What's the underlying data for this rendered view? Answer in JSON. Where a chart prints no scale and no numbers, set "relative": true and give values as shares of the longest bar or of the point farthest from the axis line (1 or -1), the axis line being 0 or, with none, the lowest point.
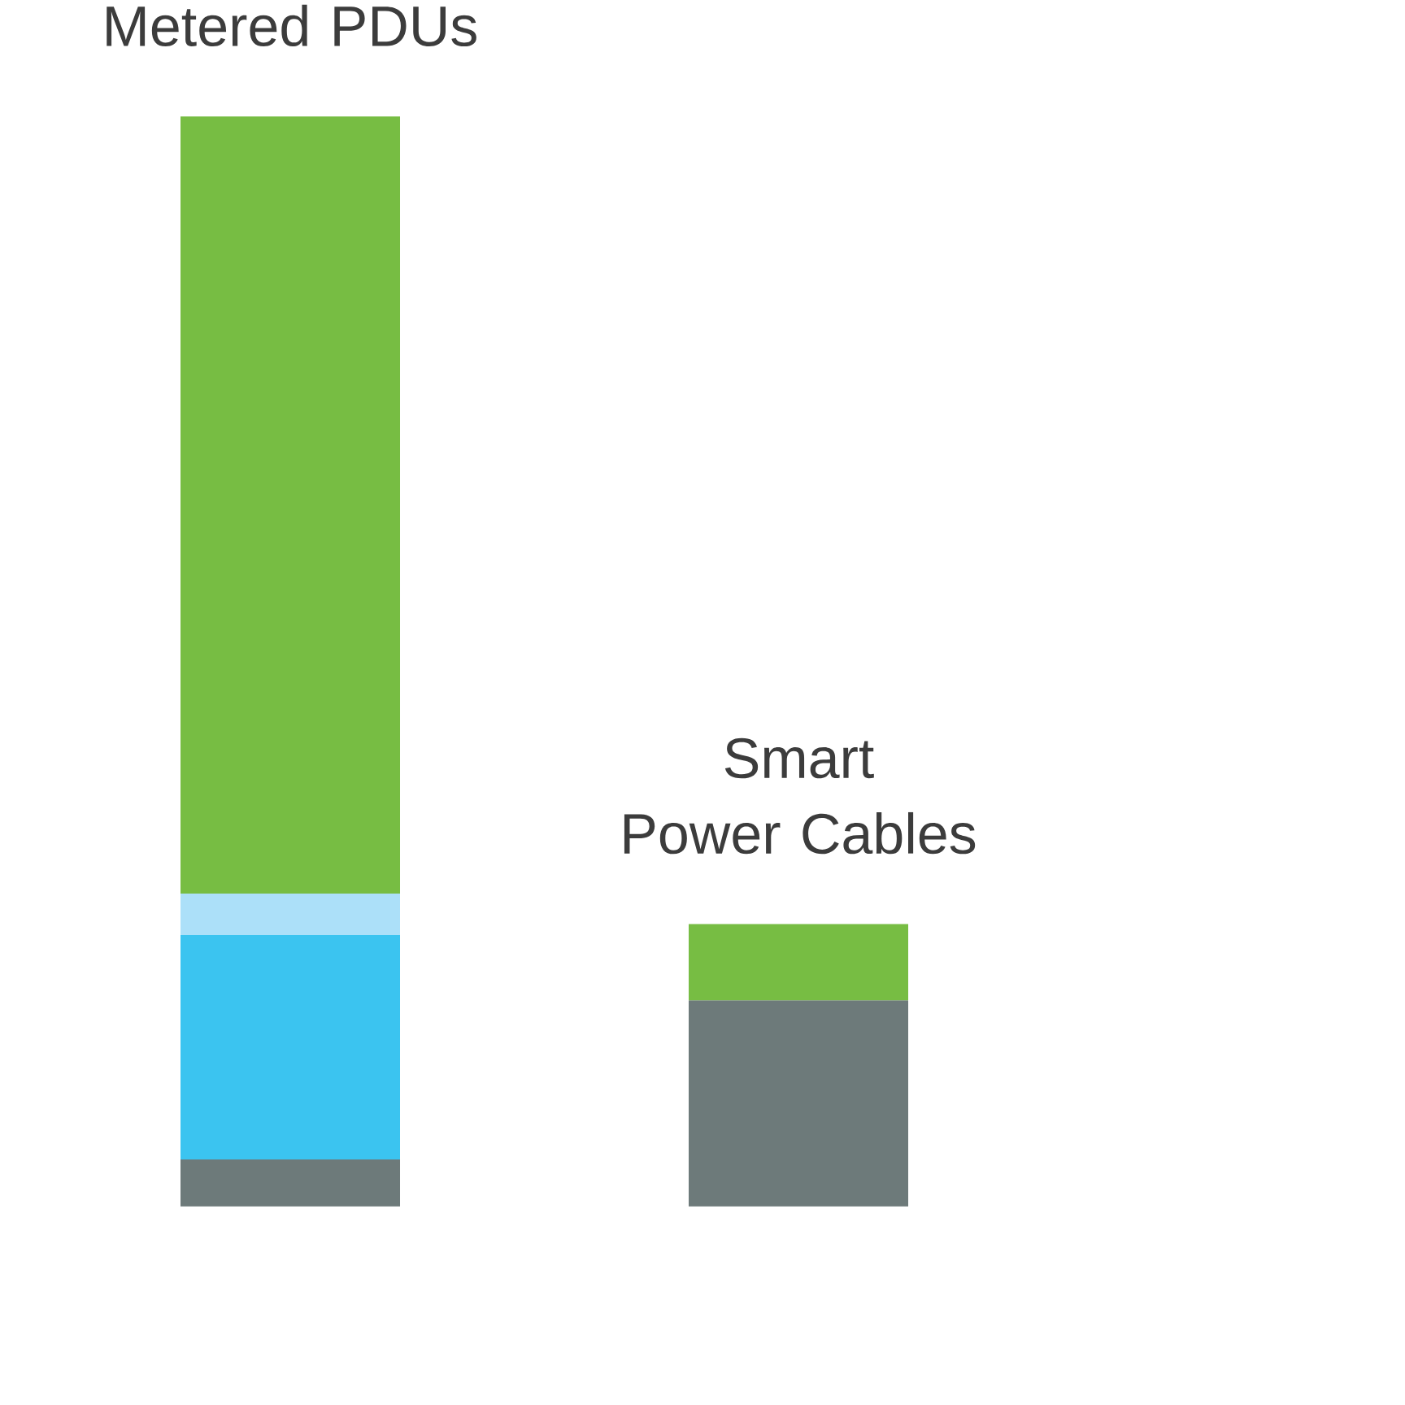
{
  "chart_data": {
    "type": "bar",
    "relative": true,
    "stacked": true,
    "categories": [
      "Metered PDUs",
      "Smart\nPower Cables"
    ],
    "series": [
      {
        "color": "#6d7a7a",
        "values": [
          0.043,
          0.189
        ]
      },
      {
        "color": "#3bc4f0",
        "values": [
          0.206,
          null
        ]
      },
      {
        "color": "#ace0f9",
        "values": [
          0.038,
          null
        ]
      },
      {
        "color": "#77bd43",
        "values": [
          0.713,
          0.07
        ]
      }
    ]
  }
}
